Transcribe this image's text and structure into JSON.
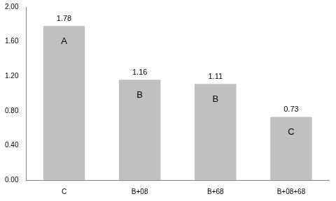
{
  "chart_data": {
    "type": "bar",
    "categories": [
      "C",
      "B+08",
      "B+68",
      "B+08+68"
    ],
    "values": [
      1.78,
      1.16,
      1.11,
      0.73
    ],
    "annotations": [
      "A",
      "B",
      "B",
      "C"
    ],
    "color": "#c0c0c0",
    "ylim": [
      0,
      2
    ],
    "yticks": [
      {
        "value": 0,
        "label": "0.00"
      },
      {
        "value": 0.4,
        "label": "0.40"
      },
      {
        "value": 0.8,
        "label": "0.80"
      },
      {
        "value": 1.2,
        "label": "1.20"
      },
      {
        "value": 1.6,
        "label": "1.60"
      },
      {
        "value": 2,
        "label": "2.00"
      }
    ],
    "grid": false,
    "data_labels": true
  }
}
